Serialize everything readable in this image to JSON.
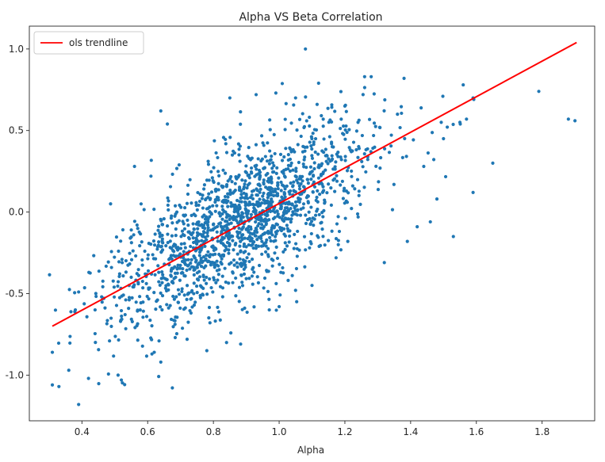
{
  "chart_data": {
    "type": "scatter",
    "title": "Alpha VS Beta Correlation",
    "xlabel": "Alpha",
    "ylabel": "",
    "xlim": [
      0.24,
      1.96
    ],
    "ylim": [
      -1.28,
      1.14
    ],
    "x_ticks": [
      0.4,
      0.6,
      0.8,
      1.0,
      1.2,
      1.4,
      1.6,
      1.8
    ],
    "x_tick_labels": [
      "0.4",
      "0.6",
      "0.8",
      "1.0",
      "1.2",
      "1.4",
      "1.6",
      "1.8"
    ],
    "y_ticks": [
      -1.0,
      -0.5,
      0.0,
      0.5,
      1.0
    ],
    "y_tick_labels": [
      "-1.0",
      "-0.5",
      "0.0",
      "0.5",
      "1.0"
    ],
    "grid": false,
    "legend": {
      "position": "top-left",
      "entries": [
        "ols trendline"
      ]
    },
    "series": [
      {
        "kind": "points",
        "color": "#1f77b4",
        "point_count": 1700,
        "distribution": {
          "x_mean": 0.88,
          "x_sd": 0.2,
          "slope": 1.09,
          "intercept": -1.03,
          "resid_sd": 0.22
        },
        "points": [
          [
            1.08,
            1.0
          ],
          [
            0.31,
            -1.06
          ],
          [
            0.33,
            -1.07
          ],
          [
            0.39,
            -1.18
          ],
          [
            0.36,
            -0.97
          ],
          [
            0.31,
            -0.86
          ],
          [
            0.42,
            -1.02
          ],
          [
            0.51,
            -1.0
          ],
          [
            0.52,
            -1.03
          ],
          [
            0.38,
            -0.6
          ],
          [
            0.39,
            -0.49
          ],
          [
            0.44,
            -0.6
          ],
          [
            0.64,
            0.62
          ],
          [
            0.66,
            0.54
          ],
          [
            1.26,
            0.83
          ],
          [
            1.28,
            0.83
          ],
          [
            1.38,
            0.82
          ],
          [
            1.12,
            0.79
          ],
          [
            1.56,
            0.78
          ],
          [
            1.79,
            0.74
          ],
          [
            1.9,
            0.56
          ],
          [
            1.88,
            0.57
          ],
          [
            1.65,
            0.3
          ],
          [
            1.59,
            0.12
          ],
          [
            1.53,
            -0.15
          ],
          [
            1.46,
            -0.06
          ],
          [
            1.42,
            -0.09
          ],
          [
            1.32,
            -0.31
          ],
          [
            1.39,
            -0.18
          ],
          [
            1.48,
            0.08
          ],
          [
            1.57,
            0.57
          ],
          [
            1.59,
            0.7
          ],
          [
            1.55,
            0.55
          ],
          [
            1.5,
            0.45
          ],
          [
            1.44,
            0.28
          ],
          [
            1.36,
            0.6
          ],
          [
            0.56,
            0.28
          ],
          [
            0.58,
            0.05
          ],
          [
            0.61,
            0.22
          ],
          [
            0.55,
            -0.4
          ],
          [
            0.49,
            -0.34
          ],
          [
            0.46,
            -0.52
          ],
          [
            0.62,
            -0.86
          ],
          [
            0.64,
            -0.92
          ],
          [
            0.78,
            -0.85
          ],
          [
            0.84,
            -0.8
          ],
          [
            0.72,
            -0.78
          ],
          [
            0.85,
            0.7
          ],
          [
            0.93,
            0.72
          ],
          [
            0.99,
            0.73
          ],
          [
            1.05,
            0.7
          ],
          [
            1.2,
            0.65
          ],
          [
            1.24,
            0.55
          ],
          [
            1.18,
            -0.2
          ],
          [
            1.1,
            -0.45
          ],
          [
            1.05,
            -0.48
          ],
          [
            0.97,
            -0.6
          ],
          [
            1.0,
            -0.58
          ]
        ]
      },
      {
        "name": "ols trendline",
        "kind": "line",
        "color": "#ff0000",
        "x": [
          0.31,
          1.905
        ],
        "y": [
          -0.7,
          1.04
        ]
      }
    ]
  }
}
